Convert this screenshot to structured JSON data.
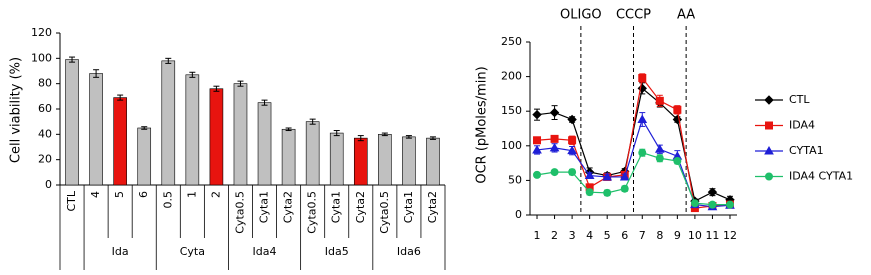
{
  "chart_data": [
    {
      "type": "bar",
      "ylabel": "Cell viability (%)",
      "categories": [
        "CTL",
        "4",
        "5",
        "6",
        "0.5",
        "1",
        "2",
        "Cyta0.5",
        "Cyta1",
        "Cyta2",
        "Cyta0.5",
        "Cyta1",
        "Cyta2",
        "Cyta0.5",
        "Cyta1",
        "Cyta2"
      ],
      "group_labels": [
        null,
        "Ida",
        "Ida",
        "Ida",
        "Cyta",
        "Cyta",
        "Cyta",
        "Ida4",
        "Ida4",
        "Ida4",
        "Ida5",
        "Ida5",
        "Ida5",
        "Ida6",
        "Ida6",
        "Ida6"
      ],
      "values": [
        99,
        88,
        69,
        45,
        98,
        87,
        76,
        80,
        65,
        44,
        50,
        41,
        37,
        40,
        38,
        37
      ],
      "errors": [
        2,
        3,
        2,
        1,
        2,
        2,
        2,
        2,
        2,
        1,
        2,
        2,
        2,
        1,
        1,
        1
      ],
      "colors": [
        "#c0c0c0",
        "#c0c0c0",
        "#e8140f",
        "#c0c0c0",
        "#c0c0c0",
        "#c0c0c0",
        "#e8140f",
        "#c0c0c0",
        "#c0c0c0",
        "#c0c0c0",
        "#c0c0c0",
        "#c0c0c0",
        "#e8140f",
        "#c0c0c0",
        "#c0c0c0",
        "#c0c0c0"
      ],
      "ylim": [
        0,
        120
      ],
      "yticks": [
        0,
        20,
        40,
        60,
        80,
        100,
        120
      ]
    },
    {
      "type": "line",
      "ylabel": "OCR (pMoles/min)",
      "x": [
        1,
        2,
        3,
        4,
        5,
        6,
        7,
        8,
        9,
        10,
        11,
        12
      ],
      "xlim": [
        0.6,
        12.4
      ],
      "xticks": [
        1,
        2,
        3,
        4,
        5,
        6,
        7,
        8,
        9,
        10,
        11,
        12
      ],
      "ylim": [
        0,
        250
      ],
      "yticks": [
        0,
        50,
        100,
        150,
        200,
        250
      ],
      "annotations": [
        {
          "text": "OLIGO",
          "x": 3.5
        },
        {
          "text": "CCCP",
          "x": 6.5
        },
        {
          "text": "AA",
          "x": 9.5
        }
      ],
      "series": [
        {
          "name": "CTL",
          "color": "#000000",
          "marker": "diamond",
          "values": [
            145,
            148,
            138,
            62,
            57,
            63,
            183,
            162,
            138,
            20,
            33,
            22
          ],
          "errors": [
            8,
            10,
            4,
            6,
            4,
            4,
            8,
            6,
            4,
            3,
            5,
            5
          ]
        },
        {
          "name": "IDA4",
          "color": "#e8140f",
          "marker": "square",
          "values": [
            108,
            110,
            108,
            40,
            55,
            58,
            198,
            165,
            152,
            10,
            13,
            15
          ],
          "errors": [
            4,
            4,
            6,
            4,
            4,
            4,
            6,
            8,
            6,
            3,
            3,
            3
          ]
        },
        {
          "name": "CYTA1",
          "color": "#1f1fd6",
          "marker": "triangle",
          "values": [
            94,
            97,
            93,
            57,
            55,
            55,
            138,
            95,
            85,
            15,
            12,
            14
          ],
          "errors": [
            6,
            6,
            6,
            4,
            4,
            4,
            10,
            6,
            8,
            3,
            3,
            3
          ]
        },
        {
          "name": "IDA4 CYTA1",
          "color": "#1fbf6a",
          "marker": "circle",
          "values": [
            58,
            62,
            62,
            33,
            32,
            38,
            90,
            82,
            78,
            17,
            15,
            15
          ],
          "errors": [
            3,
            3,
            4,
            4,
            4,
            4,
            5,
            5,
            4,
            3,
            3,
            3
          ]
        }
      ]
    }
  ]
}
